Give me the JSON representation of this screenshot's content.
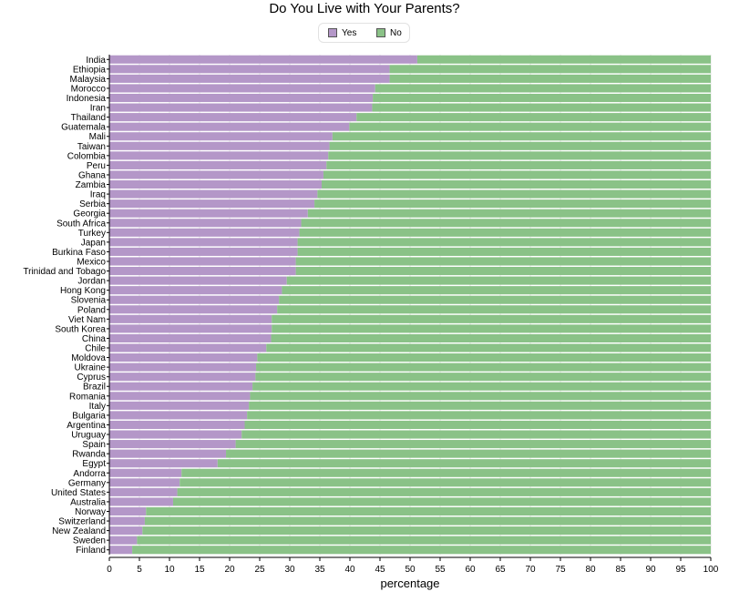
{
  "chart_data": {
    "type": "bar",
    "orientation": "horizontal",
    "stacked": true,
    "title": "Do You Live with Your Parents?",
    "xlabel": "percentage",
    "ylabel": "",
    "xlim": [
      0,
      100
    ],
    "xticks": [
      "0",
      "5",
      "10",
      "15",
      "20",
      "25",
      "30",
      "35",
      "40",
      "45",
      "50",
      "55",
      "60",
      "65",
      "70",
      "75",
      "80",
      "85",
      "90",
      "95",
      "100"
    ],
    "grid": true,
    "legend_position": "top-center",
    "categories": [
      "India",
      "Ethiopia",
      "Malaysia",
      "Morocco",
      "Indonesia",
      "Iran",
      "Thailand",
      "Guatemala",
      "Mali",
      "Taiwan",
      "Colombia",
      "Peru",
      "Ghana",
      "Zambia",
      "Iraq",
      "Serbia",
      "Georgia",
      "South Africa",
      "Turkey",
      "Japan",
      "Burkina Faso",
      "Mexico",
      "Trinidad and Tobago",
      "Jordan",
      "Hong Kong",
      "Slovenia",
      "Poland",
      "Viet Nam",
      "South Korea",
      "China",
      "Chile",
      "Moldova",
      "Ukraine",
      "Cyprus",
      "Brazil",
      "Romania",
      "Italy",
      "Bulgaria",
      "Argentina",
      "Uruguay",
      "Spain",
      "Rwanda",
      "Egypt",
      "Andorra",
      "Germany",
      "United States",
      "Australia",
      "Norway",
      "Switzerland",
      "New Zealand",
      "Sweden",
      "Finland"
    ],
    "series": [
      {
        "name": "Yes",
        "color": "#b497c8",
        "values": [
          51.2,
          46.6,
          46.6,
          44.2,
          43.8,
          43.7,
          41.1,
          39.9,
          37.1,
          36.6,
          36.4,
          36.1,
          35.6,
          35.3,
          34.6,
          34.1,
          33.0,
          31.9,
          31.6,
          31.3,
          31.3,
          31.0,
          31.0,
          29.5,
          28.7,
          28.2,
          27.9,
          27.0,
          27.0,
          26.9,
          26.1,
          24.6,
          24.4,
          24.3,
          23.8,
          23.4,
          23.2,
          22.9,
          22.5,
          22.0,
          21.0,
          19.4,
          18.0,
          12.0,
          11.7,
          11.3,
          10.6,
          6.1,
          5.9,
          5.5,
          4.6,
          3.8
        ]
      },
      {
        "name": "No",
        "color": "#8ac287",
        "values": [
          48.8,
          53.4,
          53.4,
          55.8,
          56.2,
          56.3,
          58.9,
          60.1,
          62.9,
          63.4,
          63.6,
          63.9,
          64.4,
          64.7,
          65.4,
          65.9,
          67.0,
          68.1,
          68.4,
          68.7,
          68.7,
          69.0,
          69.0,
          70.5,
          71.3,
          71.8,
          72.1,
          73.0,
          73.0,
          73.1,
          73.9,
          75.4,
          75.6,
          75.7,
          76.2,
          76.6,
          76.8,
          77.1,
          77.5,
          78.0,
          79.0,
          80.6,
          82.0,
          88.0,
          88.3,
          88.7,
          89.4,
          93.9,
          94.1,
          94.5,
          95.4,
          96.2
        ]
      }
    ]
  },
  "legend": {
    "yes_label": "Yes",
    "no_label": "No",
    "yes_color": "#b497c8",
    "no_color": "#8ac287"
  }
}
